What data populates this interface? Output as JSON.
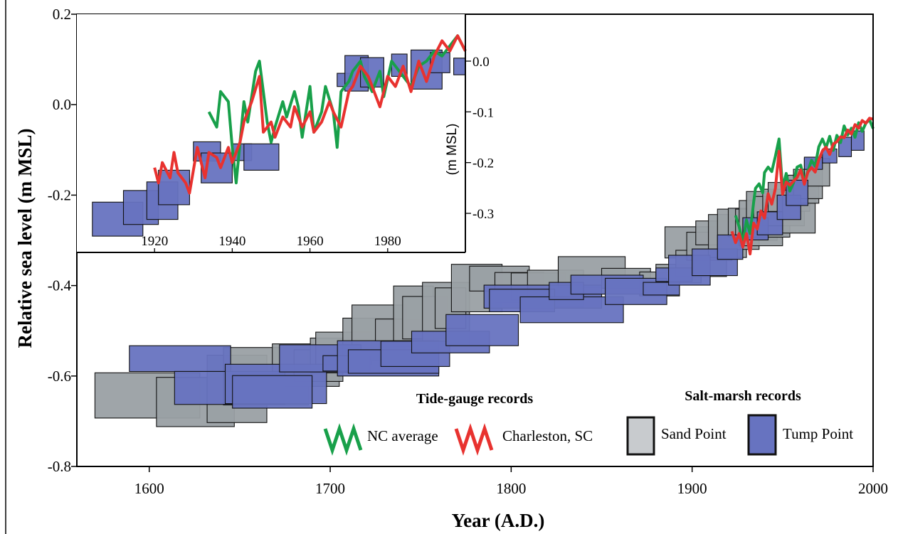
{
  "chart_data": [
    {
      "type": "box",
      "xlabel": "Year (A.D.)",
      "ylabel": "Relative sea level (m MSL)",
      "xlim": [
        1560,
        2000
      ],
      "ylim": [
        -0.8,
        0.2
      ],
      "x_ticks": [
        1600,
        1700,
        1800,
        1900,
        2000
      ],
      "x_tick_labels": [
        "1600",
        "1700",
        "1800",
        "1900",
        "2000"
      ],
      "y_ticks": [
        0.2,
        0.0,
        -0.2,
        -0.4,
        -0.6,
        -0.8
      ],
      "y_tick_labels": [
        "0.2",
        "0.0",
        "-0.2",
        "-0.4",
        "-0.6",
        "-0.8"
      ],
      "legend": {
        "tide_gauge_title": "Tide-gauge records",
        "salt_marsh_title": "Salt-marsh records",
        "entries": [
          {
            "label": "NC average",
            "color": "#18a04a",
            "kind": "line"
          },
          {
            "label": "Charleston, SC",
            "color": "#e8322f",
            "kind": "line"
          },
          {
            "label": "Sand Point",
            "color": "#9aa0a4",
            "kind": "box"
          },
          {
            "label": "Tump Point",
            "color": "#6773c0",
            "kind": "box"
          }
        ],
        "placement": "bottom-right"
      },
      "series": [
        {
          "name": "Sand Point",
          "color": "#9aa0a4",
          "boxes": [
            [
              1570,
              1628,
              -0.593,
              -0.693
            ],
            [
              1604,
              1647,
              -0.603,
              -0.712
            ],
            [
              1632,
              1665,
              -0.554,
              -0.703
            ],
            [
              1641,
              1688,
              -0.537,
              -0.664
            ],
            [
              1668,
              1705,
              -0.529,
              -0.623
            ],
            [
              1680,
              1707,
              -0.542,
              -0.612
            ],
            [
              1689,
              1715,
              -0.516,
              -0.593
            ],
            [
              1692,
              1723,
              -0.503,
              -0.575
            ],
            [
              1707,
              1736,
              -0.472,
              -0.565
            ],
            [
              1712,
              1742,
              -0.443,
              -0.546
            ],
            [
              1725,
              1750,
              -0.474,
              -0.523
            ],
            [
              1735,
              1757,
              -0.401,
              -0.535
            ],
            [
              1740,
              1765,
              -0.424,
              -0.518
            ],
            [
              1751,
              1777,
              -0.393,
              -0.533
            ],
            [
              1758,
              1775,
              -0.405,
              -0.495
            ],
            [
              1767,
              1795,
              -0.353,
              -0.458
            ],
            [
              1777,
              1810,
              -0.357,
              -0.412
            ],
            [
              1791,
              1818,
              -0.371,
              -0.437
            ],
            [
              1800,
              1830,
              -0.372,
              -0.432
            ],
            [
              1809,
              1840,
              -0.366,
              -0.447
            ],
            [
              1826,
              1863,
              -0.336,
              -0.405
            ],
            [
              1850,
              1877,
              -0.362,
              -0.406
            ],
            [
              1871,
              1893,
              -0.37,
              -0.423
            ],
            [
              1880,
              1905,
              -0.353,
              -0.394
            ],
            [
              1885,
              1916,
              -0.27,
              -0.339
            ],
            [
              1891,
              1919,
              -0.322,
              -0.38
            ],
            [
              1897,
              1922,
              -0.282,
              -0.344
            ],
            [
              1902,
              1926,
              -0.257,
              -0.31
            ],
            [
              1909,
              1930,
              -0.243,
              -0.338
            ],
            [
              1914,
              1937,
              -0.231,
              -0.32
            ],
            [
              1920,
              1941,
              -0.229,
              -0.292
            ],
            [
              1924,
              1947,
              -0.231,
              -0.3
            ],
            [
              1926,
              1950,
              -0.212,
              -0.312
            ],
            [
              1930,
              1954,
              -0.192,
              -0.293
            ],
            [
              1934,
              1959,
              -0.203,
              -0.266
            ],
            [
              1939,
              1962,
              -0.187,
              -0.268
            ],
            [
              1942,
              1965,
              -0.172,
              -0.236
            ],
            [
              1950,
              1968,
              -0.189,
              -0.284
            ],
            [
              1953,
              1970,
              -0.156,
              -0.218
            ],
            [
              1956,
              1972,
              -0.143,
              -0.208
            ],
            [
              1962,
              1976,
              -0.119,
              -0.18
            ]
          ]
        },
        {
          "name": "Tump Point",
          "color": "#6773c0",
          "boxes": [
            [
              1589,
              1645,
              -0.533,
              -0.59
            ],
            [
              1614,
              1675,
              -0.59,
              -0.663
            ],
            [
              1642,
              1698,
              -0.574,
              -0.661
            ],
            [
              1646,
              1690,
              -0.599,
              -0.671
            ],
            [
              1672,
              1717,
              -0.531,
              -0.591
            ],
            [
              1696,
              1722,
              -0.555,
              -0.589
            ],
            [
              1704,
              1760,
              -0.522,
              -0.6
            ],
            [
              1710,
              1760,
              -0.542,
              -0.594
            ],
            [
              1728,
              1766,
              -0.523,
              -0.579
            ],
            [
              1745,
              1788,
              -0.501,
              -0.549
            ],
            [
              1764,
              1804,
              -0.464,
              -0.533
            ],
            [
              1785,
              1850,
              -0.399,
              -0.45
            ],
            [
              1788,
              1824,
              -0.408,
              -0.458
            ],
            [
              1805,
              1862,
              -0.425,
              -0.482
            ],
            [
              1821,
              1840,
              -0.393,
              -0.431
            ],
            [
              1833,
              1873,
              -0.377,
              -0.419
            ],
            [
              1852,
              1886,
              -0.384,
              -0.442
            ],
            [
              1873,
              1893,
              -0.393,
              -0.421
            ],
            [
              1880,
              1900,
              -0.361,
              -0.391
            ],
            [
              1887,
              1910,
              -0.333,
              -0.399
            ],
            [
              1900,
              1925,
              -0.319,
              -0.378
            ],
            [
              1914,
              1928,
              -0.288,
              -0.342
            ],
            [
              1928,
              1942,
              -0.25,
              -0.299
            ],
            [
              1936,
              1950,
              -0.237,
              -0.288
            ],
            [
              1947,
              1960,
              -0.2,
              -0.254
            ],
            [
              1952,
              1964,
              -0.167,
              -0.223
            ],
            [
              1962,
              1972,
              -0.116,
              -0.143
            ],
            [
              1972,
              1980,
              -0.098,
              -0.129
            ],
            [
              1981,
              1988,
              -0.072,
              -0.115
            ],
            [
              1988,
              1995,
              -0.058,
              -0.101
            ]
          ]
        },
        {
          "name": "NC average",
          "color": "#18a04a",
          "x": [
            1924,
            1926,
            1928,
            1930,
            1932,
            1934,
            1935,
            1937,
            1939,
            1940,
            1942,
            1944,
            1946,
            1948,
            1950,
            1952,
            1954,
            1956,
            1958,
            1960,
            1962,
            1964,
            1966,
            1968,
            1970,
            1972,
            1974,
            1976,
            1978,
            1980,
            1982,
            1984,
            1986,
            1988,
            1990,
            1992,
            1994,
            1996,
            1998,
            2000
          ],
          "y": [
            -0.245,
            -0.27,
            -0.305,
            -0.255,
            -0.285,
            -0.215,
            -0.185,
            -0.175,
            -0.195,
            -0.15,
            -0.138,
            -0.148,
            -0.114,
            -0.076,
            -0.185,
            -0.152,
            -0.191,
            -0.173,
            -0.138,
            -0.134,
            -0.17,
            -0.147,
            -0.123,
            -0.136,
            -0.093,
            -0.076,
            -0.095,
            -0.07,
            -0.101,
            -0.068,
            -0.084,
            -0.047,
            -0.067,
            -0.052,
            -0.072,
            -0.04,
            -0.059,
            -0.041,
            -0.033,
            -0.053
          ]
        },
        {
          "name": "Charleston, SC",
          "color": "#e8322f",
          "x": [
            1922,
            1924,
            1926,
            1928,
            1930,
            1932,
            1934,
            1936,
            1938,
            1940,
            1942,
            1944,
            1946,
            1948,
            1950,
            1952,
            1954,
            1956,
            1958,
            1960,
            1962,
            1964,
            1966,
            1968,
            1970,
            1972,
            1974,
            1976,
            1978,
            1980,
            1982,
            1984,
            1986,
            1988,
            1990,
            1992,
            1994,
            1996,
            1998,
            2000
          ],
          "y": [
            -0.28,
            -0.305,
            -0.285,
            -0.315,
            -0.285,
            -0.33,
            -0.262,
            -0.275,
            -0.235,
            -0.251,
            -0.197,
            -0.22,
            -0.185,
            -0.103,
            -0.198,
            -0.171,
            -0.178,
            -0.169,
            -0.161,
            -0.144,
            -0.176,
            -0.149,
            -0.139,
            -0.149,
            -0.122,
            -0.102,
            -0.094,
            -0.11,
            -0.087,
            -0.082,
            -0.071,
            -0.073,
            -0.056,
            -0.065,
            -0.044,
            -0.052,
            -0.035,
            -0.041,
            -0.03,
            -0.032
          ]
        }
      ]
    },
    {
      "type": "box",
      "inset": true,
      "ylabel": "(m MSL)",
      "xlim": [
        1900,
        2000
      ],
      "ylim": [
        -0.37,
        0.07
      ],
      "x_ticks": [
        1920,
        1940,
        1960,
        1980
      ],
      "x_tick_labels": [
        "1920",
        "1940",
        "1960",
        "1980"
      ],
      "y_ticks": [
        0.0,
        -0.1,
        -0.2,
        -0.3
      ],
      "y_tick_labels": [
        "0.0",
        "-0.1",
        "-0.2",
        "-0.3"
      ],
      "series": [
        {
          "name": "Tump Point",
          "color": "#6773c0",
          "boxes": [
            [
              1904,
              1917,
              -0.278,
              -0.345
            ],
            [
              1912,
              1921,
              -0.255,
              -0.322
            ],
            [
              1918,
              1926,
              -0.238,
              -0.312
            ],
            [
              1921,
              1929,
              -0.215,
              -0.283
            ],
            [
              1930,
              1937,
              -0.159,
              -0.197
            ],
            [
              1932,
              1940,
              -0.181,
              -0.24
            ],
            [
              1940,
              1945,
              -0.163,
              -0.196
            ],
            [
              1943,
              1952,
              -0.163,
              -0.215
            ],
            [
              1967,
              1971,
              -0.024,
              -0.05
            ],
            [
              1969,
              1975,
              0.011,
              -0.059
            ],
            [
              1973,
              1979,
              0.007,
              -0.051
            ],
            [
              1981,
              1985,
              0.014,
              -0.03
            ],
            [
              1986,
              1994,
              0.022,
              -0.055
            ],
            [
              1991,
              1996,
              0.017,
              -0.023
            ],
            [
              1997,
              2000,
              0.006,
              -0.027
            ]
          ]
        },
        {
          "name": "NC average",
          "color": "#18a04a",
          "x": [
            1934,
            1936,
            1937,
            1939,
            1940,
            1941,
            1943,
            1944,
            1946,
            1947,
            1949,
            1950,
            1951,
            1953,
            1954,
            1956,
            1957,
            1958,
            1960,
            1961,
            1963,
            1964,
            1966,
            1967,
            1968,
            1970,
            1971,
            1973,
            1974,
            1976,
            1978,
            1979,
            1981,
            1982,
            1984,
            1986,
            1988,
            1990,
            1992,
            1994,
            1996,
            1998,
            2000
          ],
          "y": [
            -0.1,
            -0.13,
            -0.06,
            -0.08,
            -0.17,
            -0.24,
            -0.08,
            -0.12,
            -0.02,
            0.0,
            -0.12,
            -0.16,
            -0.13,
            -0.08,
            -0.11,
            -0.06,
            -0.09,
            -0.15,
            -0.05,
            -0.14,
            -0.1,
            -0.05,
            -0.1,
            -0.17,
            -0.06,
            -0.04,
            -0.02,
            0.0,
            -0.03,
            -0.06,
            -0.02,
            -0.07,
            0.0,
            -0.01,
            -0.03,
            -0.05,
            -0.01,
            0.0,
            0.02,
            0.01,
            0.03,
            0.05,
            0.02
          ]
        },
        {
          "name": "Charleston, SC",
          "color": "#e8322f",
          "x": [
            1920,
            1921,
            1922,
            1924,
            1925,
            1926,
            1928,
            1929,
            1931,
            1933,
            1934,
            1936,
            1937,
            1939,
            1940,
            1942,
            1943,
            1945,
            1947,
            1948,
            1950,
            1951,
            1953,
            1955,
            1956,
            1958,
            1960,
            1961,
            1963,
            1965,
            1966,
            1968,
            1970,
            1971,
            1973,
            1975,
            1976,
            1978,
            1980,
            1982,
            1984,
            1986,
            1988,
            1990,
            1992,
            1994,
            1996,
            1998,
            2000
          ],
          "y": [
            -0.21,
            -0.24,
            -0.2,
            -0.23,
            -0.18,
            -0.22,
            -0.24,
            -0.26,
            -0.17,
            -0.23,
            -0.18,
            -0.19,
            -0.21,
            -0.17,
            -0.2,
            -0.16,
            -0.12,
            -0.08,
            -0.03,
            -0.14,
            -0.12,
            -0.15,
            -0.11,
            -0.13,
            -0.09,
            -0.13,
            -0.1,
            -0.14,
            -0.12,
            -0.08,
            -0.1,
            -0.13,
            -0.06,
            -0.05,
            -0.01,
            -0.03,
            -0.05,
            -0.09,
            -0.03,
            -0.05,
            -0.01,
            -0.06,
            0.0,
            -0.04,
            0.01,
            0.04,
            0.02,
            0.05,
            0.02
          ]
        }
      ]
    }
  ]
}
